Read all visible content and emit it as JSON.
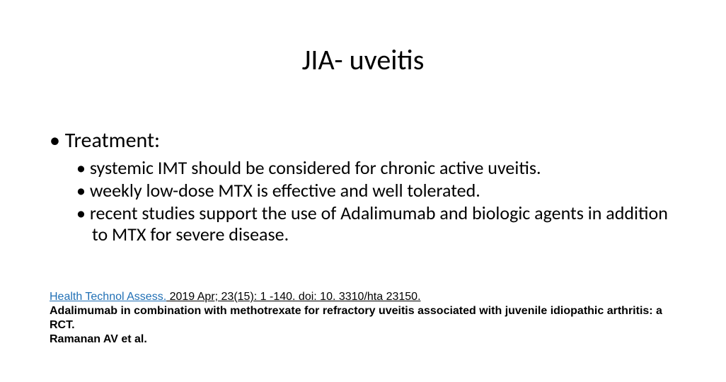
{
  "slide": {
    "title": "JIA- uveitis",
    "heading": "Treatment:",
    "bullets": [
      "systemic IMT should be considered for chronic active uveitis.",
      "weekly low-dose MTX is effective and well tolerated.",
      "recent studies support the use of Adalimumab and biologic agents in addition to MTX for severe disease."
    ],
    "citation": {
      "journal": "Health Technol Assess.",
      "ref": " 2019 Apr; 23(15): 1 -140.  doi: 10. 3310/hta 23150.",
      "title_line": "Adalimumab in combination with methotrexate for refractory uveitis associated with juvenile idiopathic arthritis: a RCT.",
      "authors": "Ramanan AV et al."
    }
  },
  "style": {
    "background_color": "#ffffff",
    "title_fontsize": 40,
    "lvl1_fontsize": 30,
    "lvl2_fontsize": 26,
    "citation_fontsize": 16,
    "text_color": "#000000",
    "journal_color": "#1f6fb5"
  }
}
